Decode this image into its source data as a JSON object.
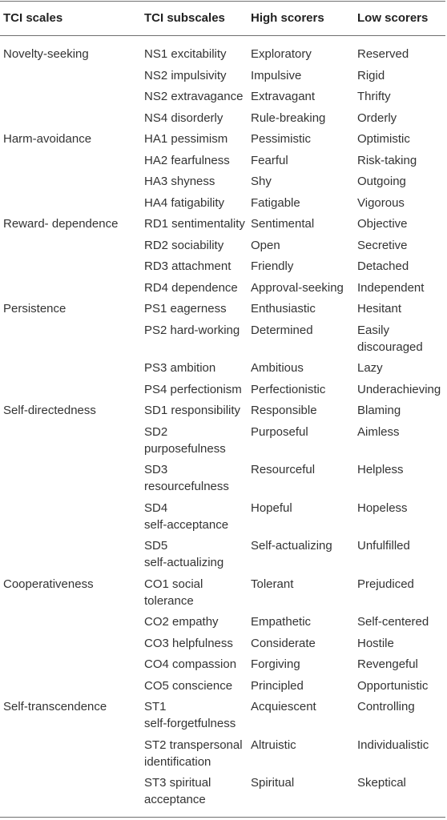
{
  "table": {
    "headers": [
      "TCI scales",
      "TCI subscales",
      "High scorers",
      "Low scorers"
    ],
    "rows": [
      [
        "Novelty-seeking",
        "NS1 excitability",
        "Exploratory",
        "Reserved"
      ],
      [
        "",
        "NS2 impulsivity",
        "Impulsive",
        "Rigid"
      ],
      [
        "",
        "NS2 extravagance",
        "Extravagant",
        "Thrifty"
      ],
      [
        "",
        "NS4 disorderly",
        "Rule-breaking",
        "Orderly"
      ],
      [
        "Harm-avoidance",
        "HA1 pessimism",
        "Pessimistic",
        "Optimistic"
      ],
      [
        "",
        "HA2 fearfulness",
        "Fearful",
        "Risk-taking"
      ],
      [
        "",
        "HA3 shyness",
        "Shy",
        "Outgoing"
      ],
      [
        "",
        "HA4 fatigability",
        "Fatigable",
        "Vigorous"
      ],
      [
        "Reward- dependence",
        "RD1 sentimentality",
        "Sentimental",
        "Objective"
      ],
      [
        "",
        "RD2 sociability",
        "Open",
        "Secretive"
      ],
      [
        "",
        "RD3 attachment",
        "Friendly",
        "Detached"
      ],
      [
        "",
        "RD4 dependence",
        "Approval-seeking",
        "Independent"
      ],
      [
        "Persistence",
        "PS1 eagerness",
        "Enthusiastic",
        "Hesitant"
      ],
      [
        "",
        "PS2 hard-working",
        "Determined",
        "Easily\ndiscouraged"
      ],
      [
        "",
        "PS3 ambition",
        "Ambitious",
        "Lazy"
      ],
      [
        "",
        "PS4 perfectionism",
        "Perfectionistic",
        "Underachieving"
      ],
      [
        "Self-directedness",
        "SD1 responsibility",
        "Responsible",
        "Blaming"
      ],
      [
        "",
        "SD2\npurposefulness",
        "Purposeful",
        "Aimless"
      ],
      [
        "",
        "SD3\nresourcefulness",
        "Resourceful",
        "Helpless"
      ],
      [
        "",
        "SD4\nself-acceptance",
        "Hopeful",
        "Hopeless"
      ],
      [
        "",
        "SD5\nself-actualizing",
        "Self-actualizing",
        "Unfulfilled"
      ],
      [
        "Cooperativeness",
        "CO1 social\ntolerance",
        "Tolerant",
        "Prejudiced"
      ],
      [
        "",
        "CO2 empathy",
        "Empathetic",
        "Self-centered"
      ],
      [
        "",
        "CO3 helpfulness",
        "Considerate",
        "Hostile"
      ],
      [
        "",
        "CO4 compassion",
        "Forgiving",
        "Revengeful"
      ],
      [
        "",
        "CO5 conscience",
        "Principled",
        "Opportunistic"
      ],
      [
        "Self-transcendence",
        "ST1\nself-forgetfulness",
        "Acquiescent",
        "Controlling"
      ],
      [
        "",
        "ST2 transpersonal\nidentification",
        "Altruistic",
        "Individualistic"
      ],
      [
        "",
        "ST3 spiritual\nacceptance",
        "Spiritual",
        "Skeptical"
      ]
    ]
  }
}
